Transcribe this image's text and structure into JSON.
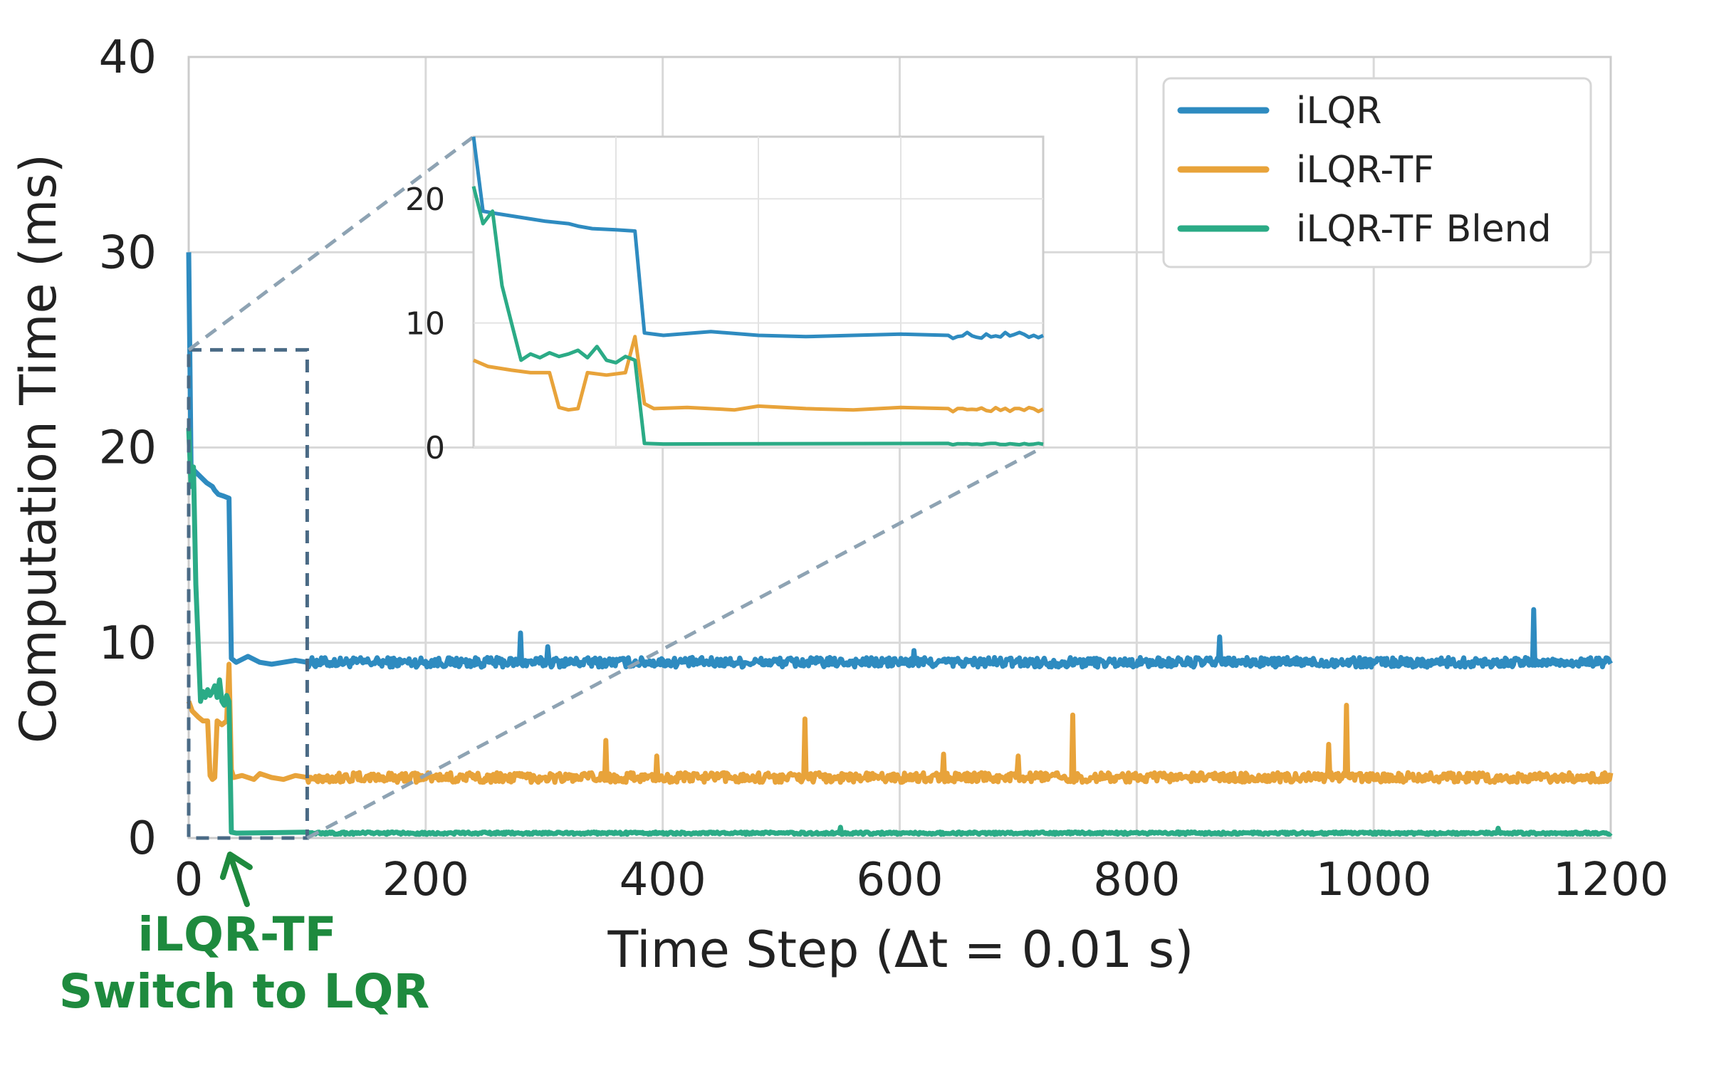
{
  "chart_data": {
    "type": "line",
    "title": "",
    "xlabel": "Time Step (Δt = 0.01 s)",
    "ylabel": "Computation Time (ms)",
    "xlim": [
      0,
      1200
    ],
    "ylim": [
      0,
      40
    ],
    "xticks": [
      "0",
      "200",
      "400",
      "600",
      "800",
      "1000",
      "1200"
    ],
    "yticks": [
      "0",
      "10",
      "20",
      "30",
      "40"
    ],
    "grid": true,
    "legend_position": "top-right",
    "series": [
      {
        "name": "iLQR",
        "color": "#2e8bc0",
        "baseline": 9.0,
        "points": [
          [
            0,
            30
          ],
          [
            2,
            19
          ],
          [
            5,
            18.8
          ],
          [
            10,
            18.5
          ],
          [
            15,
            18.2
          ],
          [
            20,
            18
          ],
          [
            22,
            17.8
          ],
          [
            25,
            17.6
          ],
          [
            30,
            17.5
          ],
          [
            34,
            17.4
          ],
          [
            36,
            9.2
          ],
          [
            40,
            9.0
          ],
          [
            50,
            9.3
          ],
          [
            60,
            9.0
          ],
          [
            70,
            8.9
          ],
          [
            80,
            9.0
          ],
          [
            90,
            9.1
          ],
          [
            100,
            9.0
          ]
        ],
        "spikes": [
          [
            280,
            10.5
          ],
          [
            303,
            9.8
          ],
          [
            612,
            9.6
          ],
          [
            870,
            10.3
          ],
          [
            1135,
            11.7
          ]
        ]
      },
      {
        "name": "iLQR-TF",
        "color": "#e8a33a",
        "baseline": 3.1,
        "points": [
          [
            0,
            7
          ],
          [
            3,
            6.5
          ],
          [
            8,
            6.2
          ],
          [
            12,
            6.0
          ],
          [
            16,
            6.0
          ],
          [
            18,
            3.2
          ],
          [
            20,
            3.0
          ],
          [
            22,
            3.1
          ],
          [
            24,
            6.0
          ],
          [
            28,
            5.8
          ],
          [
            32,
            6.0
          ],
          [
            34,
            8.9
          ],
          [
            36,
            3.5
          ],
          [
            38,
            3.1
          ],
          [
            45,
            3.2
          ],
          [
            55,
            3.0
          ],
          [
            60,
            3.3
          ],
          [
            70,
            3.1
          ],
          [
            80,
            3.0
          ],
          [
            90,
            3.2
          ],
          [
            100,
            3.1
          ]
        ],
        "spikes": [
          [
            58,
            5.3
          ],
          [
            352,
            5.0
          ],
          [
            395,
            4.2
          ],
          [
            520,
            6.1
          ],
          [
            637,
            4.3
          ],
          [
            700,
            4.2
          ],
          [
            746,
            6.3
          ],
          [
            962,
            4.8
          ],
          [
            977,
            6.8
          ]
        ]
      },
      {
        "name": "iLQR-TF Blend",
        "color": "#2bab86",
        "baseline": 0.25,
        "points": [
          [
            0,
            21
          ],
          [
            2,
            18
          ],
          [
            4,
            19
          ],
          [
            6,
            13
          ],
          [
            8,
            10
          ],
          [
            10,
            7
          ],
          [
            12,
            7.5
          ],
          [
            14,
            7.2
          ],
          [
            16,
            7.6
          ],
          [
            18,
            7.3
          ],
          [
            20,
            7.5
          ],
          [
            22,
            7.8
          ],
          [
            24,
            7.2
          ],
          [
            26,
            8.1
          ],
          [
            28,
            7.0
          ],
          [
            30,
            6.8
          ],
          [
            32,
            7.3
          ],
          [
            34,
            7.0
          ],
          [
            36,
            0.3
          ],
          [
            40,
            0.25
          ],
          [
            100,
            0.3
          ]
        ],
        "spikes": [
          [
            550,
            0.55
          ],
          [
            1105,
            0.5
          ]
        ]
      }
    ],
    "inset": {
      "xlim": [
        0,
        120
      ],
      "ylim": [
        0,
        25
      ],
      "yticks": [
        "0",
        "10",
        "20"
      ]
    },
    "zoom_box": {
      "x": [
        0,
        100
      ],
      "y": [
        0,
        25
      ]
    },
    "annotation": {
      "line1": "iLQR-TF",
      "line2": "Switch to LQR",
      "target_x": 36,
      "color": "#1e8a3e"
    }
  }
}
